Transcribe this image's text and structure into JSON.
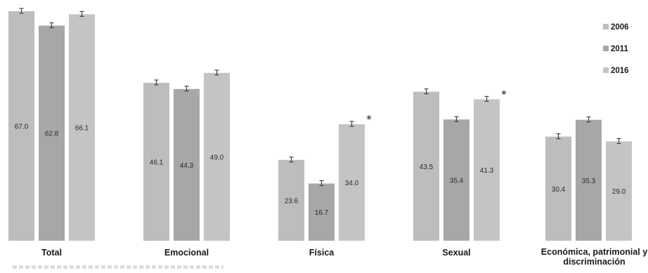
{
  "chart_data": {
    "type": "bar",
    "categories": [
      "Total",
      "Emocional",
      "Física",
      "Sexual",
      "Económica, patrimonial y discriminación"
    ],
    "series": [
      {
        "name": "2006",
        "values": [
          67.0,
          46.1,
          23.6,
          43.5,
          30.4
        ]
      },
      {
        "name": "2011",
        "values": [
          62.8,
          44.3,
          16.7,
          35.4,
          35.3
        ]
      },
      {
        "name": "2016",
        "values": [
          66.1,
          49.0,
          34.0,
          41.3,
          29.0
        ]
      }
    ],
    "value_labels": [
      [
        "67.0",
        "62.8",
        "66.1"
      ],
      [
        "46.1",
        "44.3",
        "49.0"
      ],
      [
        "23.6",
        "16.7",
        "34.0"
      ],
      [
        "43.5",
        "35.4",
        "41.3"
      ],
      [
        "30.4",
        "35.3",
        "29.0"
      ]
    ],
    "significance_markers": [
      {
        "category": "Física",
        "series": "2016",
        "symbol": "*"
      },
      {
        "category": "Sexual",
        "series": "2016",
        "symbol": "*"
      }
    ],
    "error_bars": true,
    "legend_position": "top-right",
    "ylim": [
      0,
      70
    ],
    "grid": false,
    "colors": {
      "2006": "#bdbdbd",
      "2011": "#a7a7a7",
      "2016": "#c4c4c4",
      "error_bar": "#444444"
    }
  }
}
